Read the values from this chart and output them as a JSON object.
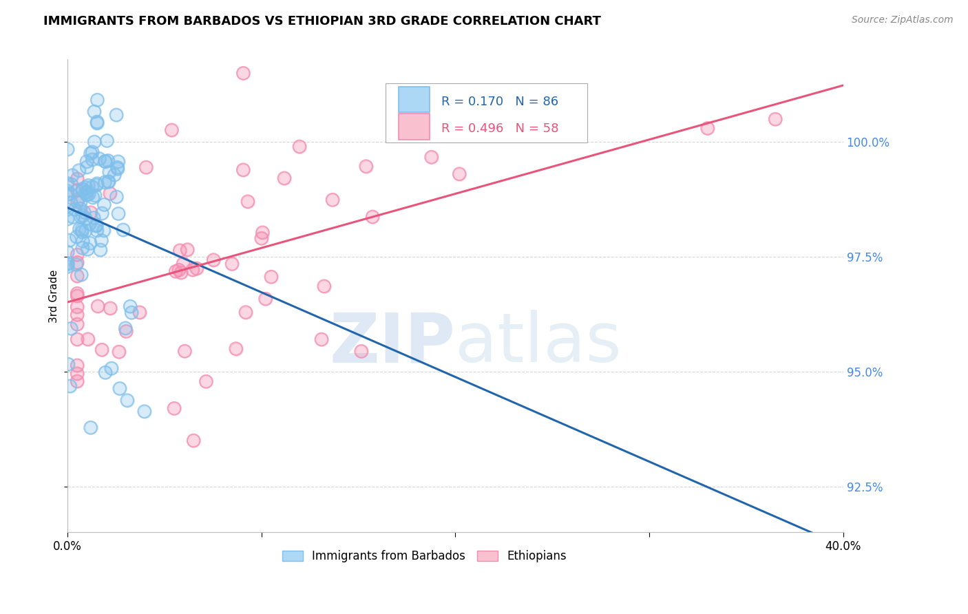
{
  "title": "IMMIGRANTS FROM BARBADOS VS ETHIOPIAN 3RD GRADE CORRELATION CHART",
  "source": "Source: ZipAtlas.com",
  "ylabel": "3rd Grade",
  "xlim": [
    0.0,
    40.0
  ],
  "ylim": [
    91.5,
    101.8
  ],
  "yticks": [
    92.5,
    95.0,
    97.5,
    100.0
  ],
  "ytick_labels": [
    "92.5%",
    "95.0%",
    "97.5%",
    "100.0%"
  ],
  "xticks": [
    0.0,
    10.0,
    20.0,
    30.0,
    40.0
  ],
  "xtick_labels": [
    "0.0%",
    "",
    "",
    "",
    "40.0%"
  ],
  "blue_R": 0.17,
  "blue_N": 86,
  "pink_R": 0.496,
  "pink_N": 58,
  "blue_dot_color": "#7fbfeb",
  "pink_dot_color": "#f48cb0",
  "blue_line_color": "#2166ac",
  "pink_line_color": "#e8547a",
  "legend_blue_label": "Immigrants from Barbados",
  "legend_pink_label": "Ethiopians",
  "watermark": "ZIPatlas",
  "background_color": "#ffffff",
  "grid_color": "#cccccc",
  "right_tick_color": "#4488ee",
  "title_fontsize": 13,
  "source_fontsize": 10,
  "seed": 7
}
